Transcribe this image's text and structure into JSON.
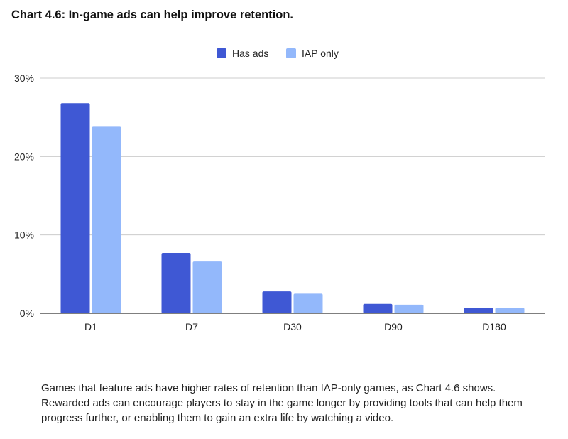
{
  "page": {
    "title": "Chart 4.6: In-game ads can help improve retention.",
    "caption": "Games that feature ads have higher rates of retention than IAP-only games, as Chart 4.6 shows. Rewarded ads can encourage players to stay in the game longer by providing tools that can help them progress further, or enabling them to gain an extra life by watching a video."
  },
  "chart_data": {
    "type": "bar",
    "title": "Chart 4.6: In-game ads can help improve retention.",
    "xlabel": "",
    "ylabel": "",
    "categories": [
      "D1",
      "D7",
      "D30",
      "D90",
      "D180"
    ],
    "series": [
      {
        "name": "Has ads",
        "color": "#3f58d4",
        "values": [
          26.8,
          7.7,
          2.8,
          1.2,
          0.7
        ]
      },
      {
        "name": "IAP only",
        "color": "#93b8fb",
        "values": [
          23.8,
          6.6,
          2.5,
          1.1,
          0.7
        ]
      }
    ],
    "ylim": [
      0,
      30
    ],
    "yticks": [
      0,
      10,
      20,
      30
    ],
    "ytick_labels": [
      "0%",
      "10%",
      "20%",
      "30%"
    ],
    "grid": true,
    "legend": "top-center"
  }
}
